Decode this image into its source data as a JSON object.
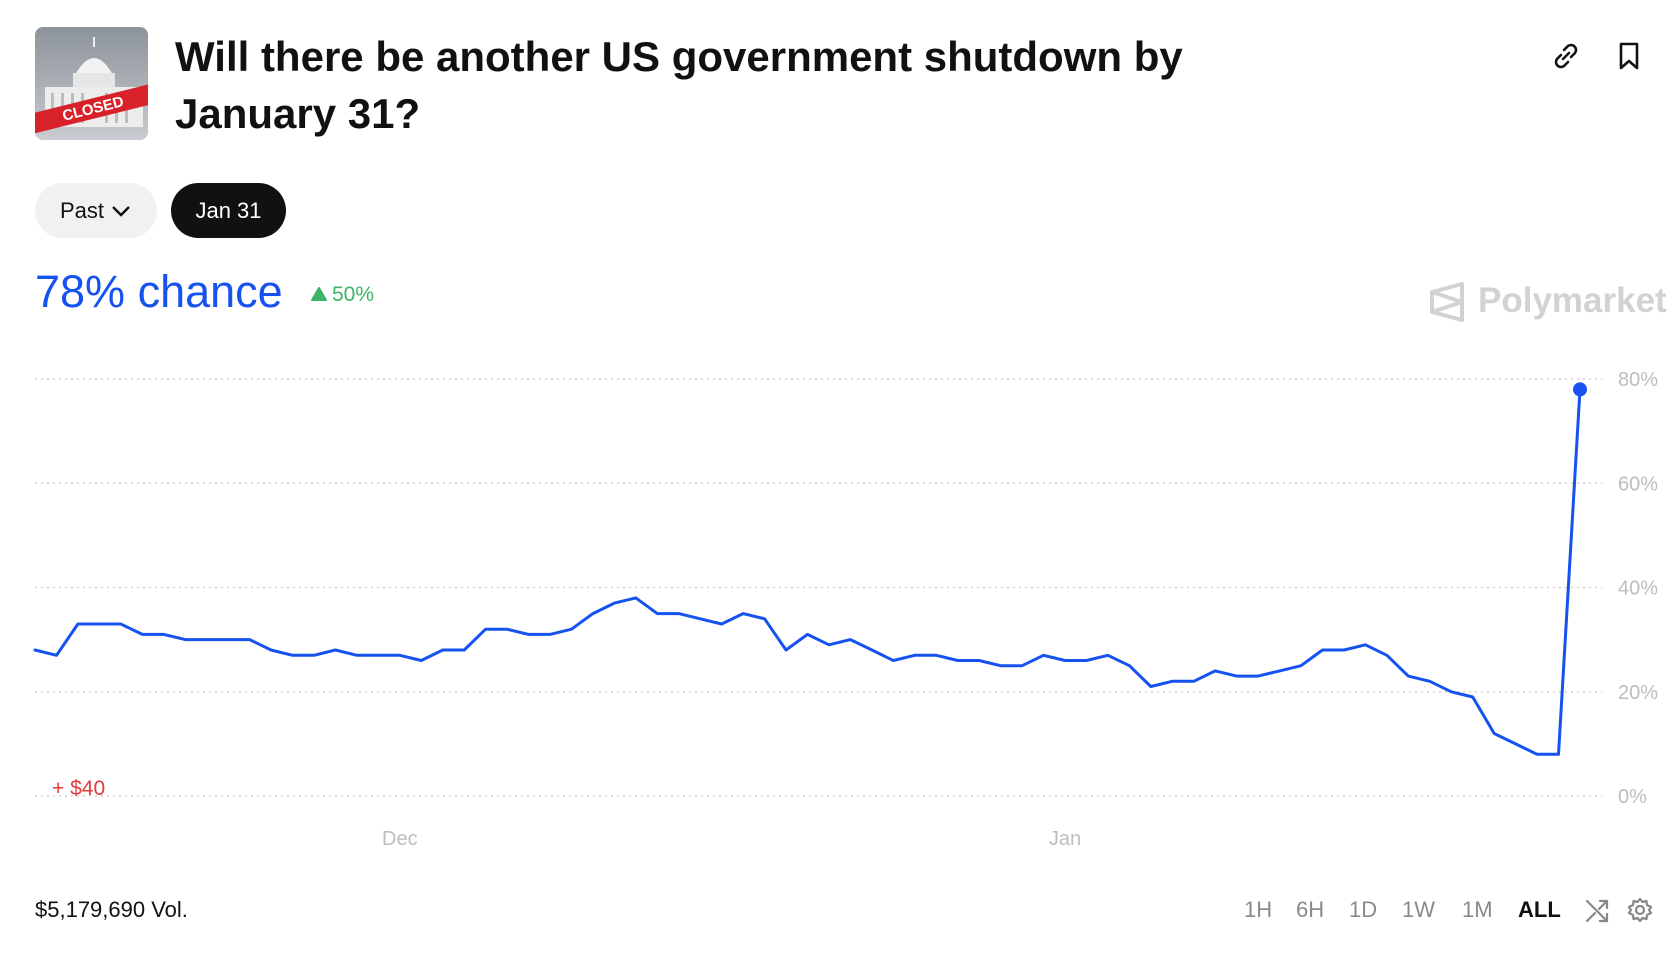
{
  "header": {
    "title": "Will there be another US government shutdown by January 31?",
    "image_text": "CLOSED"
  },
  "filters": [
    "Past",
    "Jan 31"
  ],
  "summary": {
    "chance": "78% chance",
    "change": "50%",
    "brand": "Polymarket"
  },
  "chart_data": {
    "type": "line",
    "categories": [
      null,
      null,
      null,
      null,
      null,
      null,
      null,
      null,
      null,
      null,
      null,
      null,
      null,
      null,
      null,
      null,
      null,
      "Dec",
      null,
      null,
      null,
      null,
      null,
      null,
      null,
      null,
      null,
      null,
      null,
      null,
      null,
      null,
      null,
      null,
      null,
      null,
      null,
      null,
      null,
      null,
      null,
      null,
      null,
      null,
      null,
      null,
      null,
      null,
      "Jan",
      null,
      null,
      null,
      null,
      null,
      null,
      null,
      null,
      null,
      null,
      null,
      null,
      null,
      null,
      null,
      null,
      null,
      null,
      null,
      null,
      null,
      null,
      null,
      null
    ],
    "series": [
      {
        "color": "#1652f0",
        "values": [
          28,
          27,
          33,
          33,
          33,
          31,
          31,
          30,
          30,
          30,
          30,
          28,
          27,
          27,
          28,
          27,
          27,
          27,
          26,
          28,
          28,
          32,
          32,
          31,
          31,
          32,
          35,
          37,
          38,
          35,
          35,
          34,
          33,
          35,
          34,
          28,
          31,
          29,
          30,
          28,
          26,
          27,
          27,
          26,
          26,
          25,
          25,
          27,
          26,
          26,
          27,
          25,
          21,
          22,
          22,
          24,
          23,
          23,
          24,
          25,
          28,
          28,
          29,
          27,
          23,
          22,
          20,
          19,
          12,
          10,
          8,
          8,
          78
        ]
      }
    ],
    "ylim": [
      0,
      80
    ],
    "yticks": [
      {
        "value": 0,
        "label": "0%"
      },
      {
        "value": 20,
        "label": "20%"
      },
      {
        "value": 40,
        "label": "40%"
      },
      {
        "value": 60,
        "label": "60%"
      },
      {
        "value": 80,
        "label": "80%"
      }
    ],
    "grid": true,
    "annotation": "+ $40"
  },
  "footer": {
    "volume": "$5,179,690 Vol.",
    "timeframes": [
      "1H",
      "6H",
      "1D",
      "1W",
      "1M",
      "ALL"
    ]
  }
}
